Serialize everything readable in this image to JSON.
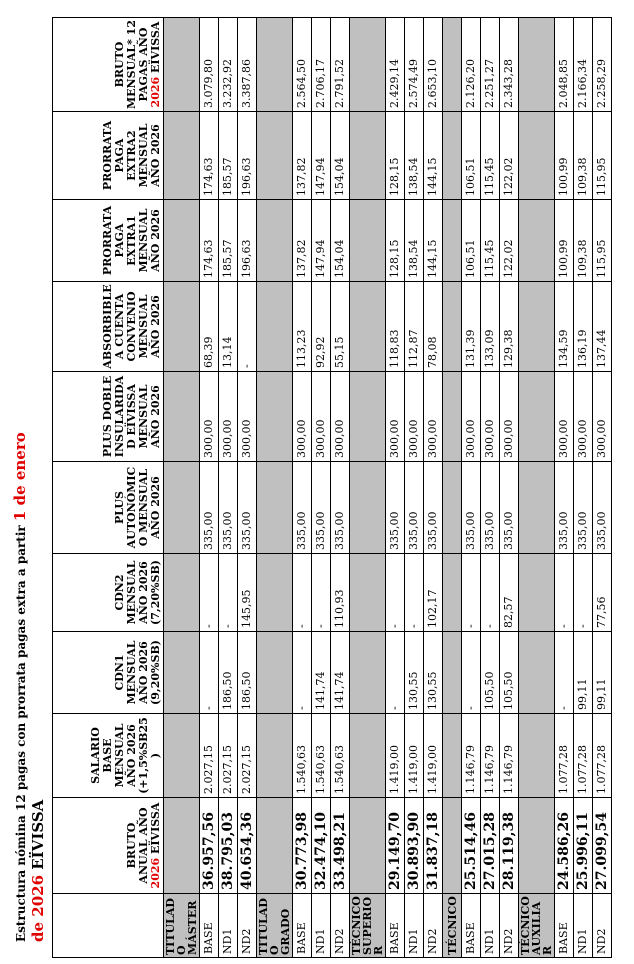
{
  "title": [
    {
      "text": "Estructura nómina 12 pagas con prorrata pagas extra a partir "
    },
    {
      "text": "1 de enero de 2026",
      "color": "#e00000"
    },
    {
      "text": " EÏVISSA"
    }
  ],
  "table": {
    "headers": [
      [
        {
          "text": "BRUTO ANUAL AÑO "
        },
        {
          "text": "2026",
          "color": "#e00000"
        },
        {
          "text": " EÏVISSA"
        }
      ],
      [
        {
          "text": "SALARIO BASE MENSUAL AÑO 2026 (+1,5%SB25)"
        }
      ],
      [
        {
          "text": "CDN1 MENSUAL AÑO 2026 (9,20%SB)"
        }
      ],
      [
        {
          "text": "CDN2 MENSUAL AÑO 2026 (7,20%SB)"
        }
      ],
      [
        {
          "text": "PLUS AUTONÓMICO MENSUAL AÑO 2026"
        }
      ],
      [
        {
          "text": "PLUS DOBLE INSULARIDAD EÏVISSA MENSUAL AÑO 2026"
        }
      ],
      [
        {
          "text": "ABSORBIBLE A CUENTA CONVENIO MENSUAL AÑO 2026"
        }
      ],
      [
        {
          "text": "PRORRATA PAGA EXTRA1 MENSUAL AÑO 2026"
        }
      ],
      [
        {
          "text": "PRORRATA PAGA EXTRA2 MENSUAL AÑO 2026"
        }
      ],
      [
        {
          "text": "BRUTO MENSUAL* 12 PAGAS AÑO "
        },
        {
          "text": "2026",
          "color": "#e00000"
        },
        {
          "text": " EÏVISSA"
        }
      ]
    ],
    "groups": [
      {
        "label": "TITULADO MÁSTER",
        "rows": [
          {
            "label": "BASE",
            "values": [
              "36.957,56",
              "2.027,15",
              "-",
              "-",
              "335,00",
              "300,00",
              "68,39",
              "174,63",
              "174,63",
              "3.079,80"
            ]
          },
          {
            "label": "ND1",
            "values": [
              "38.795,03",
              "2.027,15",
              "186,50",
              "-",
              "335,00",
              "300,00",
              "13,14",
              "185,57",
              "185,57",
              "3.232,92"
            ]
          },
          {
            "label": "ND2",
            "values": [
              "40.654,36",
              "2.027,15",
              "186,50",
              "145,95",
              "335,00",
              "300,00",
              "-",
              "196,63",
              "196,63",
              "3.387,86"
            ]
          }
        ]
      },
      {
        "label": "TITULADO GRADO",
        "rows": [
          {
            "label": "BASE",
            "values": [
              "30.773,98",
              "1.540,63",
              "-",
              "-",
              "335,00",
              "300,00",
              "113,23",
              "137,82",
              "137,82",
              "2.564,50"
            ]
          },
          {
            "label": "ND1",
            "values": [
              "32.474,10",
              "1.540,63",
              "141,74",
              "-",
              "335,00",
              "300,00",
              "92,92",
              "147,94",
              "147,94",
              "2.706,17"
            ]
          },
          {
            "label": "ND2",
            "values": [
              "33.498,21",
              "1.540,63",
              "141,74",
              "110,93",
              "335,00",
              "300,00",
              "55,15",
              "154,04",
              "154,04",
              "2.791,52"
            ]
          }
        ]
      },
      {
        "label": "TÉCNICO SUPERIOR",
        "rows": [
          {
            "label": "BASE",
            "values": [
              "29.149,70",
              "1.419,00",
              "-",
              "-",
              "335,00",
              "300,00",
              "118,83",
              "128,15",
              "128,15",
              "2.429,14"
            ]
          },
          {
            "label": "ND1",
            "values": [
              "30.893,90",
              "1.419,00",
              "130,55",
              "-",
              "335,00",
              "300,00",
              "112,87",
              "138,54",
              "138,54",
              "2.574,49"
            ]
          },
          {
            "label": "ND2",
            "values": [
              "31.837,18",
              "1.419,00",
              "130,55",
              "102,17",
              "335,00",
              "300,00",
              "78,08",
              "144,15",
              "144,15",
              "2.653,10"
            ]
          }
        ]
      },
      {
        "label": "TÉCNICO",
        "rows": [
          {
            "label": "BASE",
            "values": [
              "25.514,46",
              "1.146,79",
              "-",
              "-",
              "335,00",
              "300,00",
              "131,39",
              "106,51",
              "106,51",
              "2.126,20"
            ]
          },
          {
            "label": "ND1",
            "values": [
              "27.015,28",
              "1.146,79",
              "105,50",
              "-",
              "335,00",
              "300,00",
              "133,09",
              "115,45",
              "115,45",
              "2.251,27"
            ]
          },
          {
            "label": "ND2",
            "values": [
              "28.119,38",
              "1.146,79",
              "105,50",
              "82,57",
              "335,00",
              "300,00",
              "129,38",
              "122,02",
              "122,02",
              "2.343,28"
            ]
          }
        ]
      },
      {
        "label": "TÉCNICO AUXILIAR",
        "rows": [
          {
            "label": "BASE",
            "values": [
              "24.586,26",
              "1.077,28",
              "-",
              "-",
              "335,00",
              "300,00",
              "134,59",
              "100,99",
              "100,99",
              "2.048,85"
            ]
          },
          {
            "label": "ND1",
            "values": [
              "25.996,11",
              "1.077,28",
              "99,11",
              "-",
              "335,00",
              "300,00",
              "136,19",
              "109,38",
              "109,38",
              "2.166,34"
            ]
          },
          {
            "label": "ND2",
            "values": [
              "27.099,54",
              "1.077,28",
              "99,11",
              "77,56",
              "335,00",
              "300,00",
              "137,44",
              "115,95",
              "115,95",
              "2.258,29"
            ]
          }
        ]
      }
    ]
  }
}
